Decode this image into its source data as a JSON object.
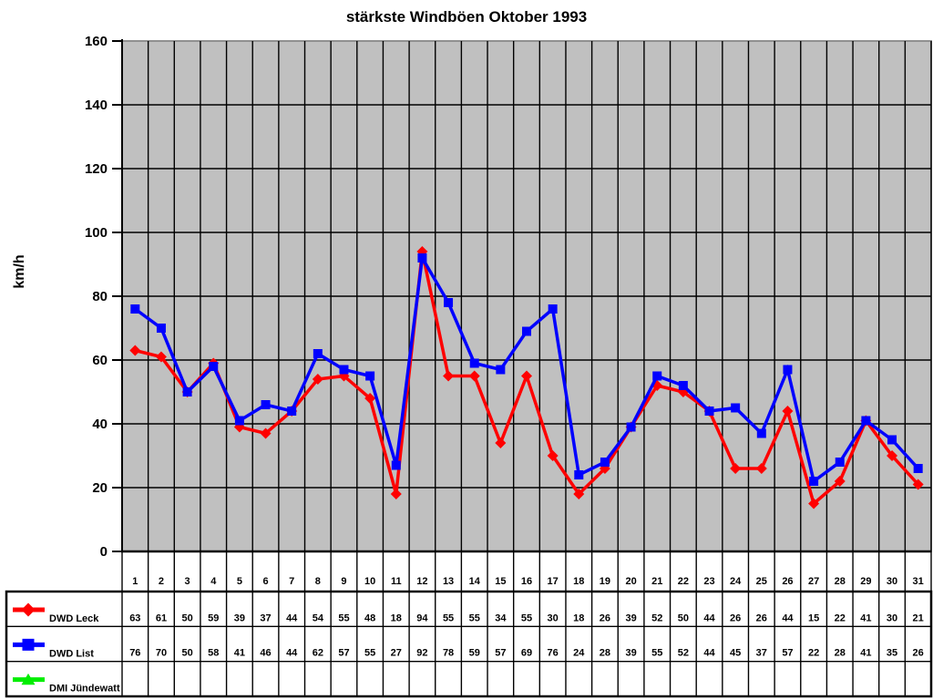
{
  "page": {
    "background": "#ffffff"
  },
  "chart_data": {
    "type": "line",
    "title": "stärkste Windböen Oktober 1993",
    "ylabel": "km/h",
    "xlabel": "",
    "ylim": [
      0,
      160
    ],
    "yticks": [
      0,
      20,
      40,
      60,
      80,
      100,
      120,
      140,
      160
    ],
    "grid": true,
    "plot_bg": "#c0c0c0",
    "grid_color": "#000000",
    "legend_position": "bottom-table-left-column",
    "categories": [
      "1",
      "2",
      "3",
      "4",
      "5",
      "6",
      "7",
      "8",
      "9",
      "10",
      "11",
      "12",
      "13",
      "14",
      "15",
      "16",
      "17",
      "18",
      "19",
      "20",
      "21",
      "22",
      "23",
      "24",
      "25",
      "26",
      "27",
      "28",
      "29",
      "30",
      "31"
    ],
    "series": [
      {
        "name": "DWD Leck",
        "color": "#ff0000",
        "marker": "diamond",
        "values": [
          63,
          61,
          50,
          59,
          39,
          37,
          44,
          54,
          55,
          48,
          18,
          94,
          55,
          55,
          34,
          55,
          30,
          18,
          26,
          39,
          52,
          50,
          44,
          26,
          26,
          44,
          15,
          22,
          41,
          30,
          21
        ]
      },
      {
        "name": "DWD List",
        "color": "#0000ff",
        "marker": "square",
        "values": [
          76,
          70,
          50,
          58,
          41,
          46,
          44,
          62,
          57,
          55,
          27,
          92,
          78,
          59,
          57,
          69,
          76,
          24,
          28,
          39,
          55,
          52,
          44,
          45,
          37,
          57,
          22,
          28,
          41,
          35,
          26
        ]
      },
      {
        "name": "DMI Jündewatt",
        "color": "#00ee00",
        "marker": "triangle",
        "values": []
      }
    ]
  }
}
